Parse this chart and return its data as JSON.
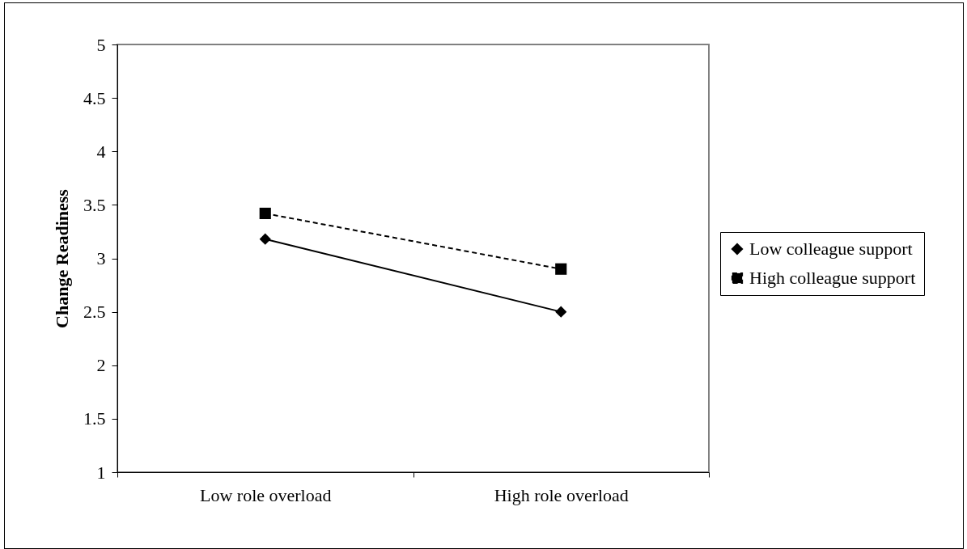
{
  "chart_data": {
    "type": "line",
    "ylabel": "Change Readiness",
    "categories": [
      "Low role overload",
      "High role overload"
    ],
    "series": [
      {
        "name": "Low colleague support",
        "color": "#000000",
        "values": [
          3.18,
          2.5
        ],
        "marker": "diamond",
        "line_style": "solid"
      },
      {
        "name": "High colleague support",
        "color": "#000000",
        "values": [
          3.42,
          2.9
        ],
        "marker": "square",
        "line_style": "dashed"
      }
    ],
    "ylim": [
      1,
      5
    ],
    "yticks": [
      1,
      1.5,
      2,
      2.5,
      3,
      3.5,
      4,
      4.5,
      5
    ],
    "grid": false,
    "legend": "right"
  }
}
